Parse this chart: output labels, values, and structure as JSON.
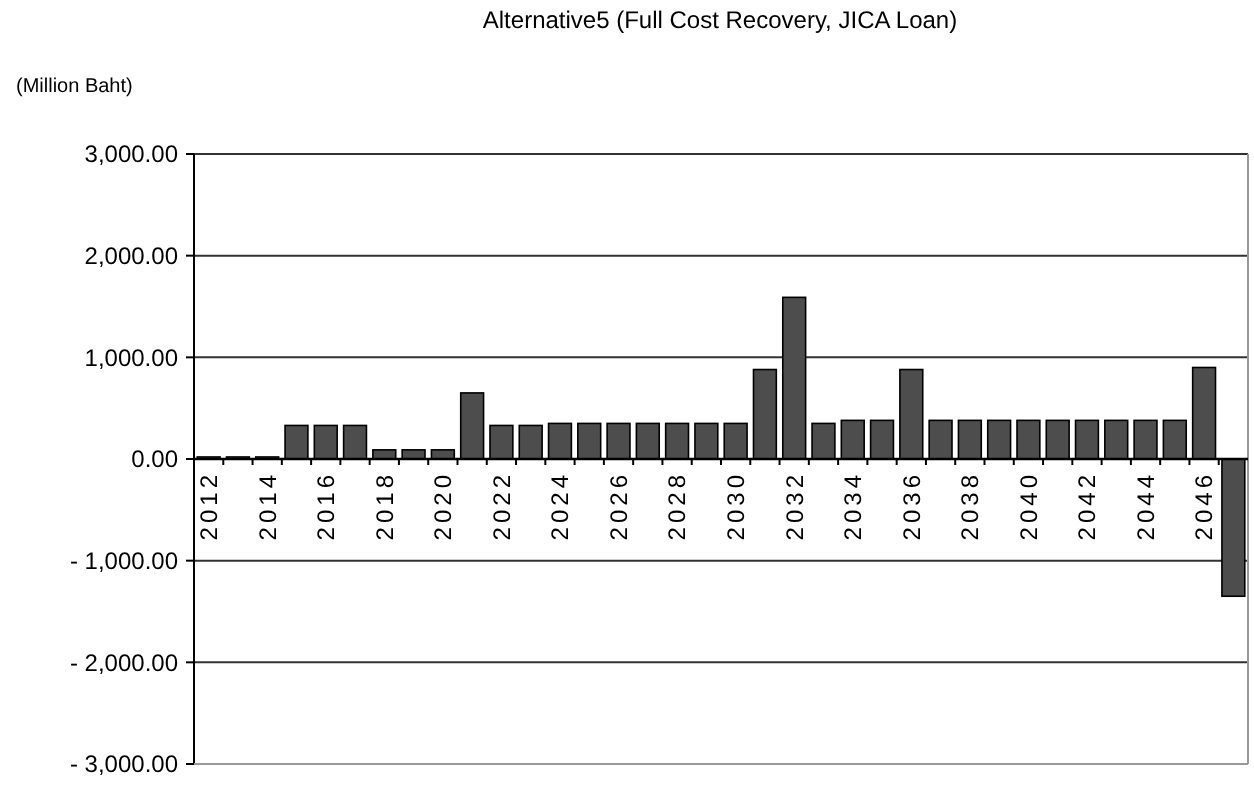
{
  "chart_data": {
    "type": "bar",
    "title": "Alternative5 (Full Cost Recovery, JICA Loan)",
    "ylabel": "(Million Baht)",
    "categories": [
      "2012",
      null,
      "2014",
      null,
      "2016",
      null,
      "2018",
      null,
      "2020",
      null,
      "2022",
      null,
      "2024",
      null,
      "2026",
      null,
      "2028",
      null,
      "2030",
      null,
      "2032",
      null,
      "2034",
      null,
      "2036",
      null,
      "2038",
      null,
      "2040",
      null,
      "2042",
      null,
      "2044",
      null,
      "2046",
      null
    ],
    "values": [
      20,
      20,
      20,
      330,
      330,
      330,
      90,
      90,
      90,
      650,
      330,
      330,
      350,
      350,
      350,
      350,
      350,
      350,
      350,
      880,
      1590,
      350,
      380,
      380,
      880,
      380,
      380,
      380,
      380,
      380,
      380,
      380,
      380,
      380,
      900,
      -1350
    ],
    "color": "#4d4d4d",
    "ylim": [
      -3000,
      3000
    ],
    "yticks": [
      {
        "value": -3000,
        "label": "- 3,000.00"
      },
      {
        "value": -2000,
        "label": "- 2,000.00"
      },
      {
        "value": -1000,
        "label": "- 1,000.00"
      },
      {
        "value": 0,
        "label": "0.00"
      },
      {
        "value": 1000,
        "label": "1,000.00"
      },
      {
        "value": 2000,
        "label": "2,000.00"
      },
      {
        "value": 3000,
        "label": "3,000.00"
      }
    ],
    "grid": "y"
  }
}
